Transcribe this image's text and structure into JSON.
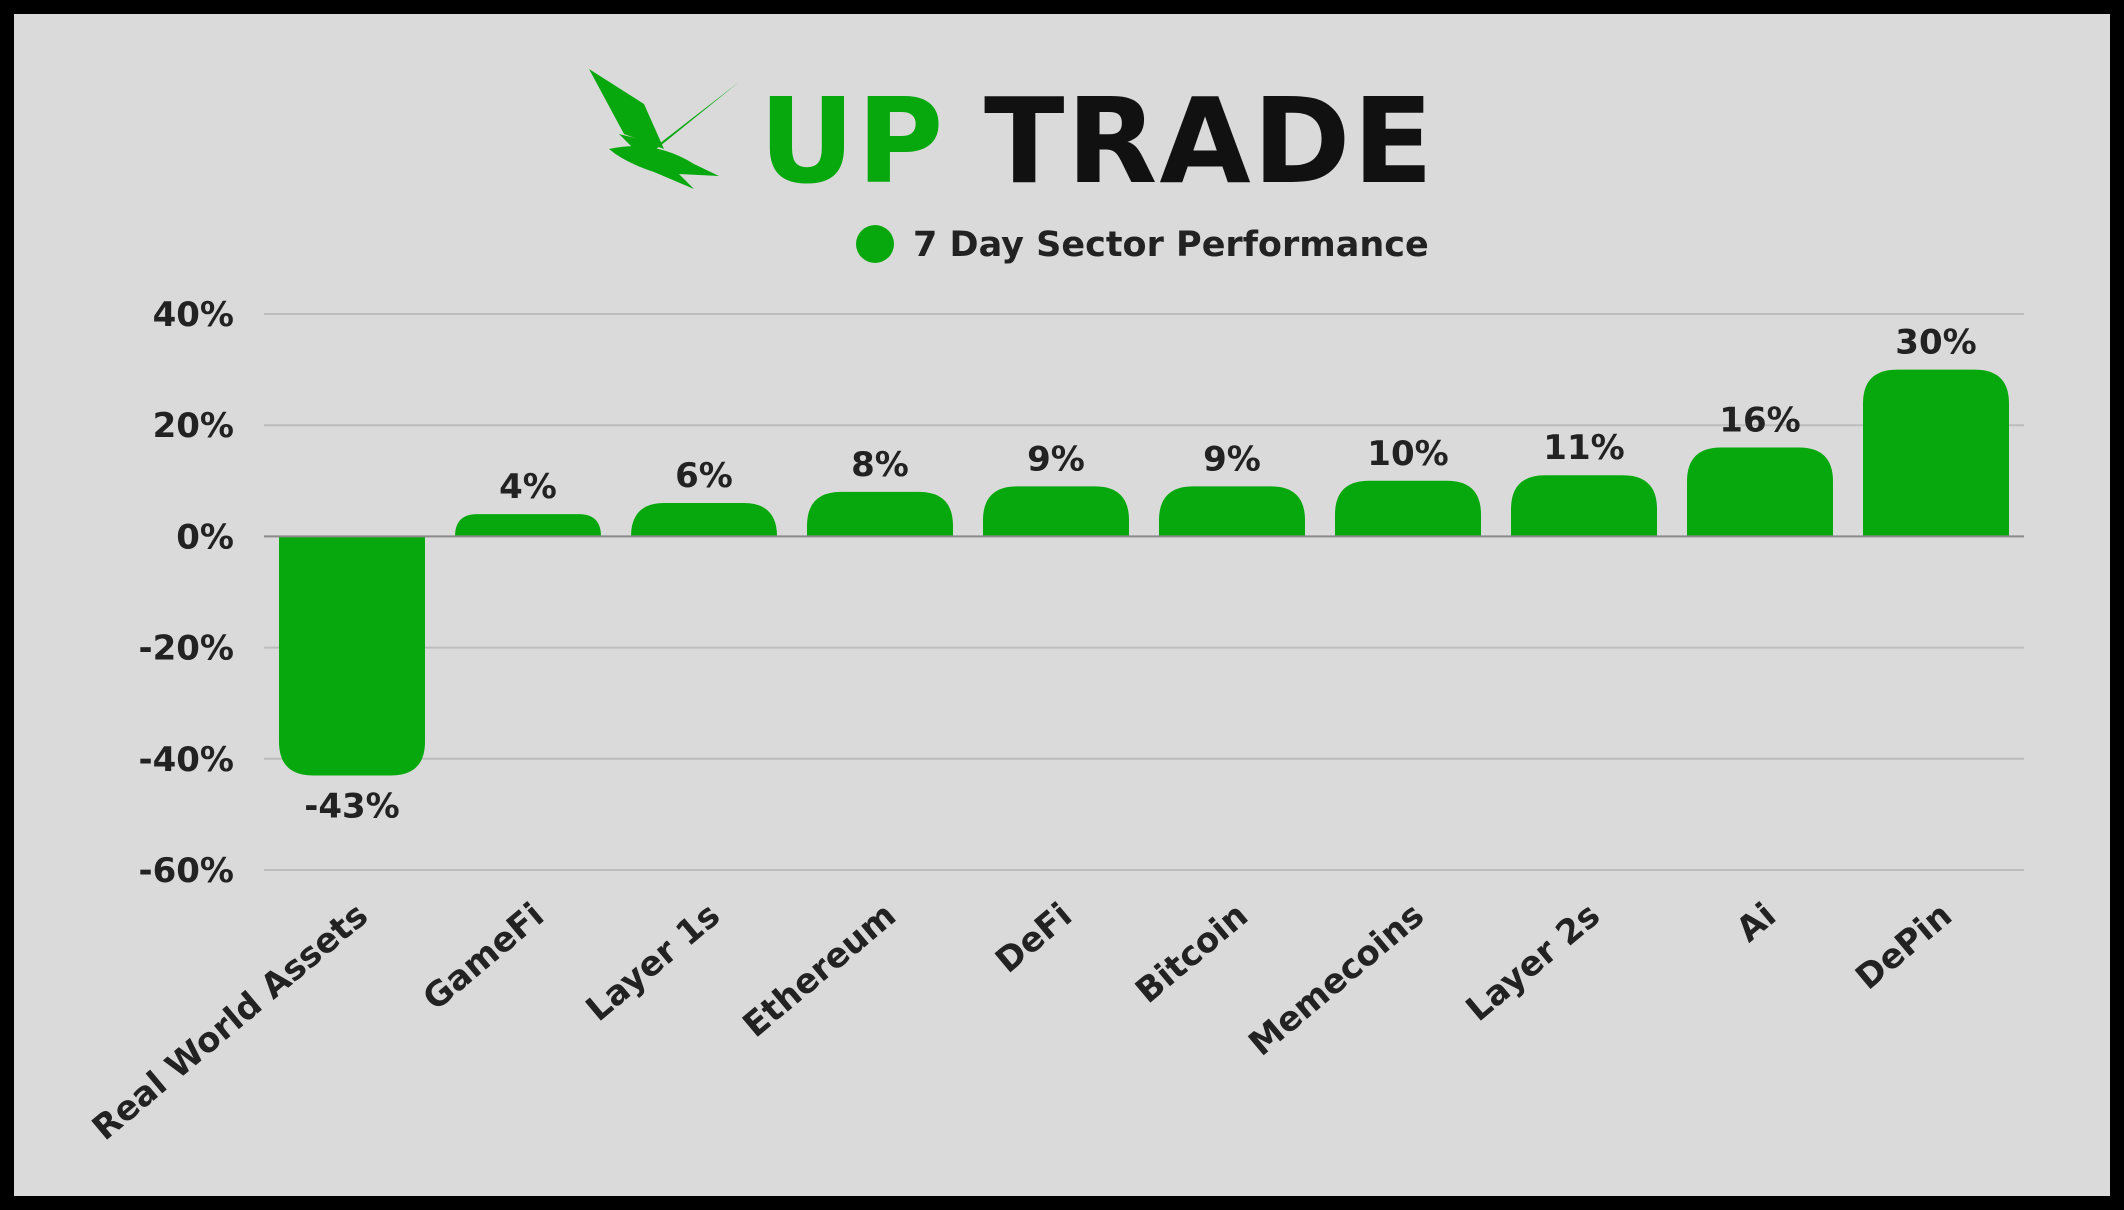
{
  "brand": {
    "wordmark_primary": "UP",
    "wordmark_secondary": "TRADE",
    "logo_icon": "bird-logo-icon",
    "primary_color": "#07a80e",
    "secondary_color": "#111111"
  },
  "colors": {
    "background": "#dadada",
    "bar": "#07a80e",
    "gridline": "#bdbdbd",
    "text": "#222222"
  },
  "chart_data": {
    "type": "bar",
    "categories": [
      "Real World Assets",
      "GameFi",
      "Layer 1s",
      "Ethereum",
      "DeFi",
      "Bitcoin",
      "Memecoins",
      "Layer 2s",
      "Ai",
      "DePin"
    ],
    "series": [
      {
        "name": "7 Day Sector Performance",
        "values": [
          -43,
          4,
          6,
          8,
          9,
          9,
          10,
          11,
          16,
          30
        ],
        "labels": [
          "-43%",
          "4%",
          "6%",
          "8%",
          "9%",
          "9%",
          "10%",
          "11%",
          "16%",
          "30%"
        ]
      }
    ],
    "y_ticks": [
      40,
      20,
      0,
      -20,
      -40,
      -60
    ],
    "y_tick_labels": [
      "40%",
      "20%",
      "0%",
      "-20%",
      "-40%",
      "-60%"
    ],
    "ylim": [
      -60,
      40
    ],
    "grid": true,
    "legend_position": "top-center",
    "title": "",
    "xlabel": "",
    "ylabel": ""
  }
}
